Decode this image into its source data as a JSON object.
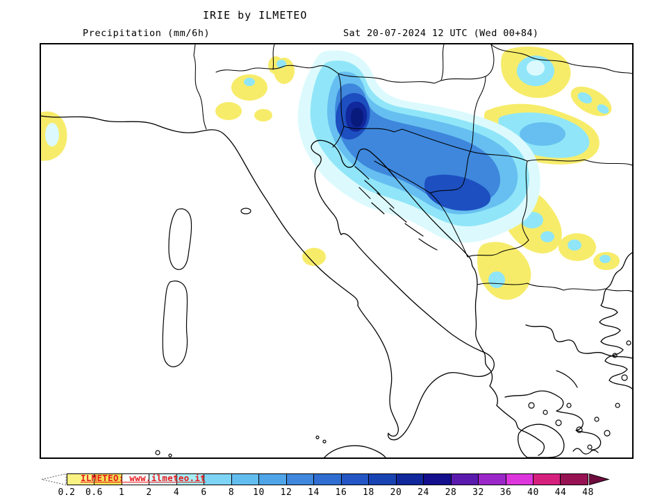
{
  "header": {
    "title": "IRIE by ILMETEO",
    "subtitle_left": "Precipitation (mm/6h)",
    "subtitle_right": "Sat 20-07-2024 12 UTC (Wed 00+84)"
  },
  "map": {
    "region": "Italy, Adriatic and Balkans",
    "palette": {
      "yellow": "#F7EC6A",
      "pale_cyan": "#DCFAFD",
      "cyan": "#90E6F8",
      "light_blue": "#66BFF0",
      "medium_blue": "#3E87DC",
      "dark_blue": "#1D4FC0",
      "navy": "#10289B",
      "darkest_navy": "#091A7D",
      "coastline": "#000000",
      "land": "#FFFFFF",
      "sea": "#FFFFFF"
    }
  },
  "colorbar": {
    "watermark": "ILMETEO: www.ilmeteo.it",
    "watermark_color": "#E8191C",
    "labels": [
      "0.2",
      "0.6",
      "1",
      "2",
      "4",
      "6",
      "8",
      "10",
      "12",
      "14",
      "16",
      "18",
      "20",
      "24",
      "28",
      "32",
      "36",
      "40",
      "44",
      "48"
    ],
    "segment_colors": [
      "#FAF282",
      "#F2DE55",
      "#FEFEFE",
      "#D8FAFD",
      "#A6EEF9",
      "#7ED4F5",
      "#63BEF0",
      "#4FA5E8",
      "#3E87DC",
      "#2F6ED0",
      "#2356C4",
      "#1843B2",
      "#10289B",
      "#140F8C",
      "#5A1AAE",
      "#9B27C8",
      "#DC36DC",
      "#D6207E",
      "#971253"
    ],
    "left_arrow_color": "#FFFFFF",
    "right_arrow_color": "#6E0C3E"
  }
}
